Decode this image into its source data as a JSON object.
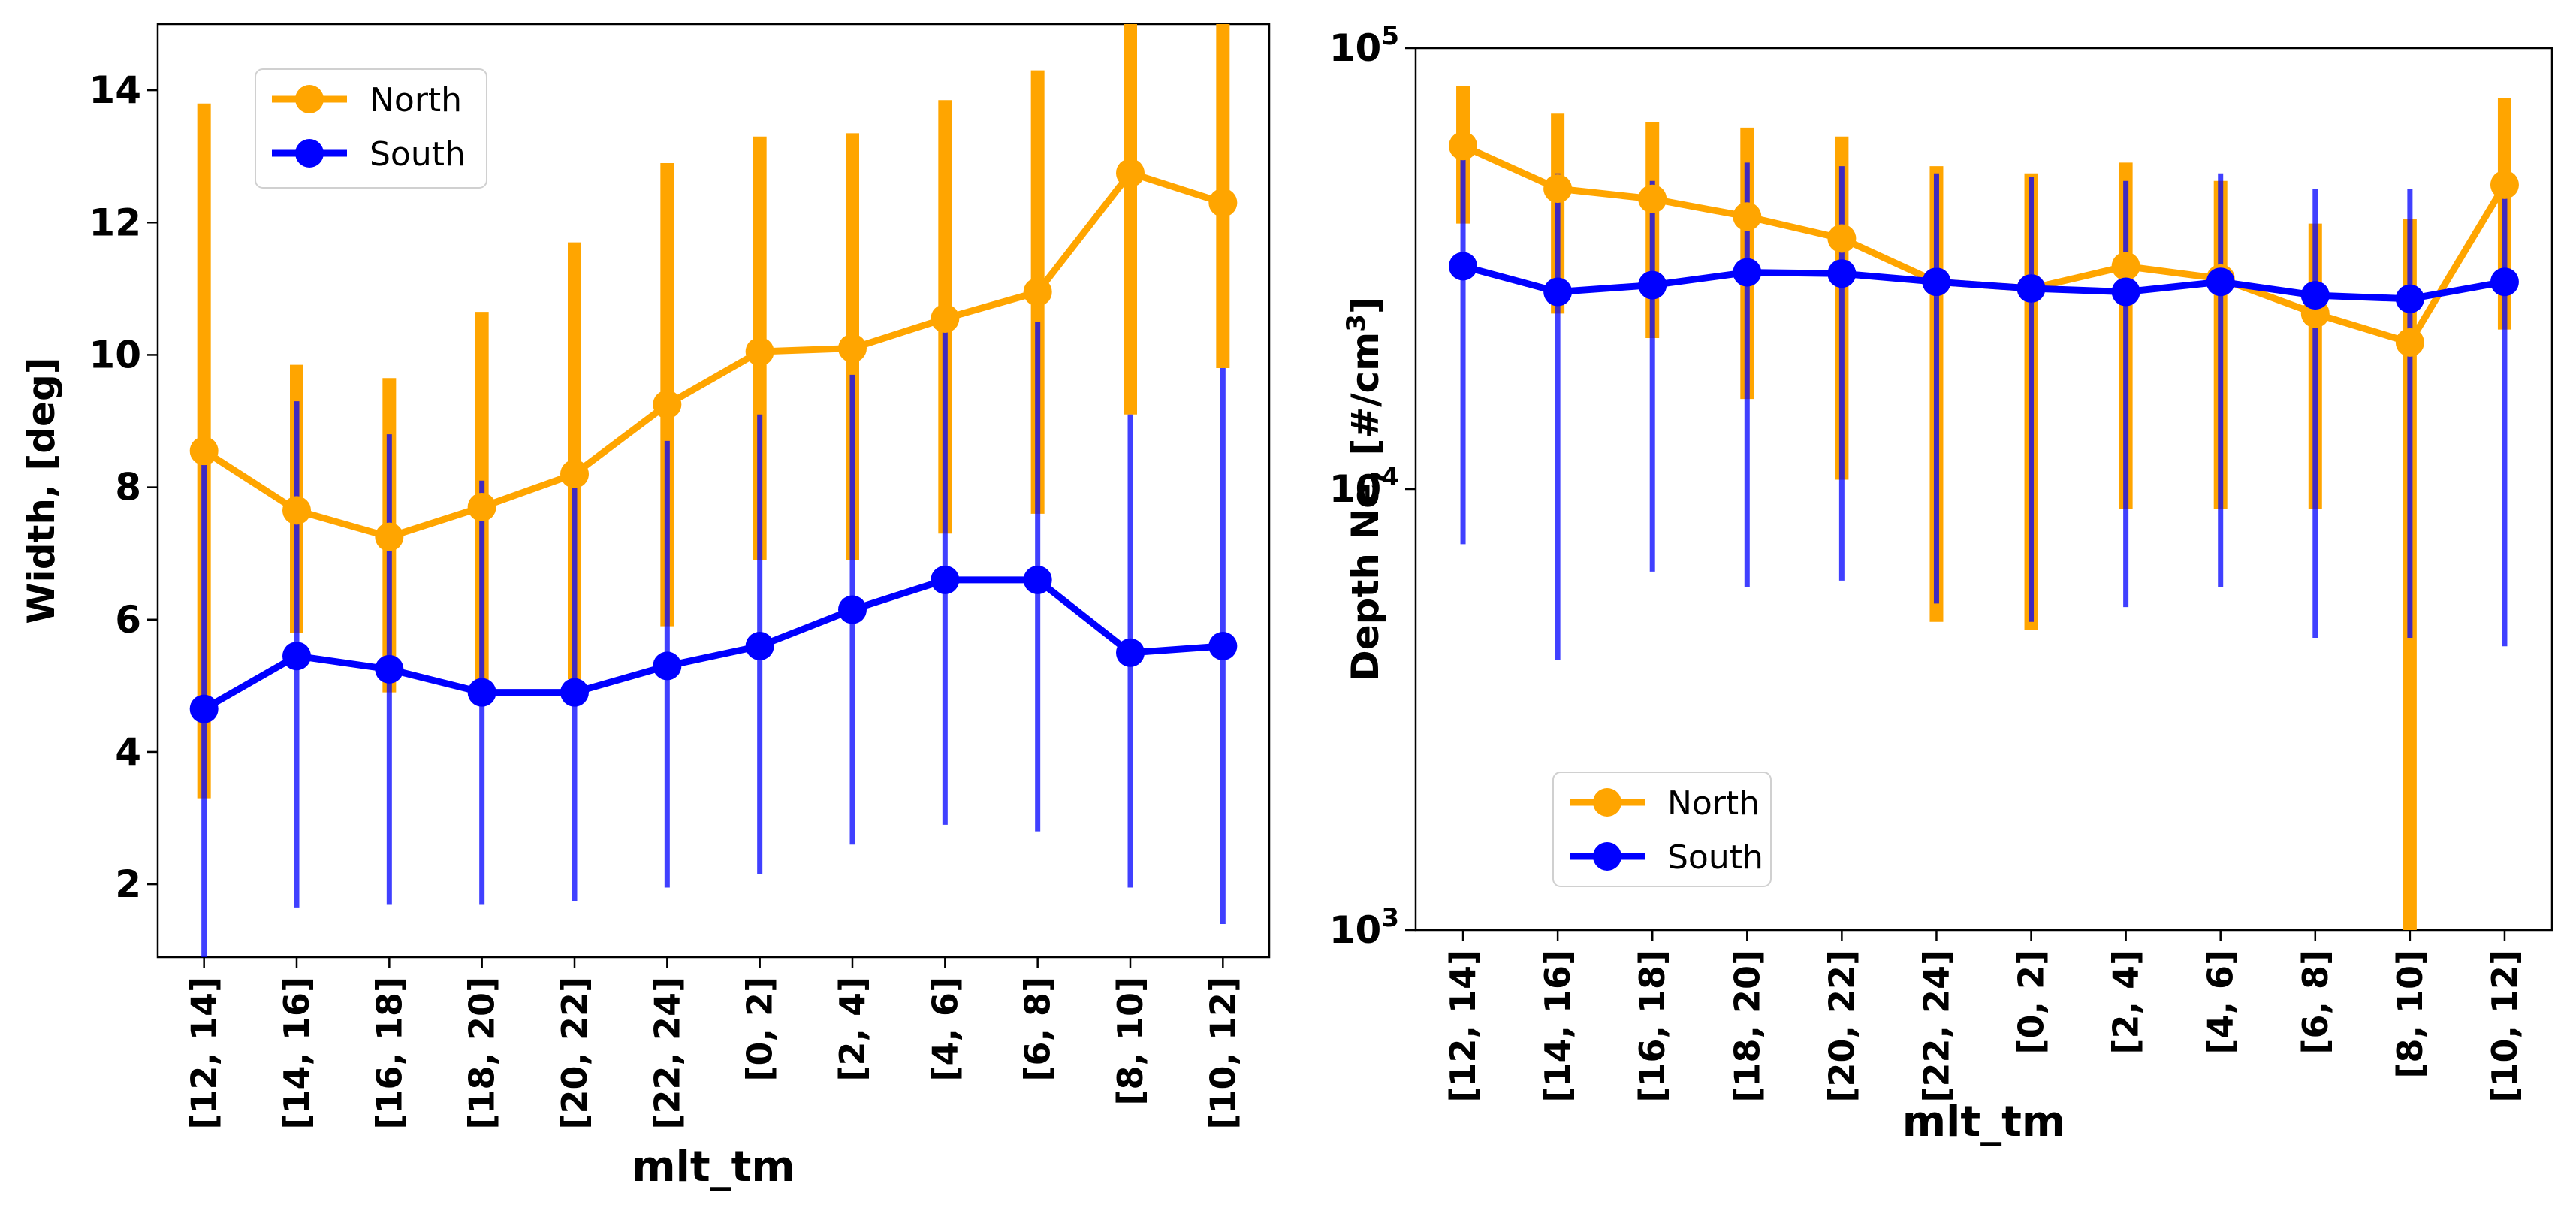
{
  "chart_data": [
    {
      "type": "line",
      "xlabel": "mlt_tm",
      "ylabel": "Width, [deg]",
      "yscale": "linear",
      "ylim": [
        0.9,
        15
      ],
      "yticks": [
        2,
        4,
        6,
        8,
        10,
        12,
        14
      ],
      "legend_location": "top-left",
      "categories": [
        "[12, 14]",
        "[14, 16]",
        "[16, 18]",
        "[18, 20]",
        "[20, 22]",
        "[22, 24]",
        "[0, 2]",
        "[2, 4]",
        "[4, 6]",
        "[6, 8]",
        "[8, 10]",
        "[10, 12]"
      ],
      "series": [
        {
          "name": "North",
          "color": "#FFA500",
          "values": [
            8.55,
            7.65,
            7.25,
            7.7,
            8.2,
            9.25,
            10.05,
            10.1,
            10.55,
            10.95,
            12.75,
            12.3
          ],
          "err_low": [
            3.3,
            5.8,
            4.9,
            5.0,
            5.1,
            5.9,
            6.9,
            6.9,
            7.3,
            7.6,
            9.1,
            9.8
          ],
          "err_high": [
            13.8,
            9.85,
            9.65,
            10.65,
            11.7,
            12.9,
            13.3,
            13.35,
            13.85,
            14.3,
            15.0,
            15.0
          ]
        },
        {
          "name": "South",
          "color": "#0000FF",
          "values": [
            4.65,
            5.45,
            5.25,
            4.9,
            4.9,
            5.3,
            5.6,
            6.15,
            6.6,
            6.6,
            5.5,
            5.6
          ],
          "err_low": [
            0.9,
            1.65,
            1.7,
            1.7,
            1.75,
            1.95,
            2.15,
            2.6,
            2.9,
            2.8,
            1.95,
            1.4
          ],
          "err_high": [
            8.4,
            9.3,
            8.8,
            8.1,
            8.1,
            8.7,
            9.1,
            9.7,
            10.4,
            10.5,
            9.1,
            9.8
          ]
        }
      ]
    },
    {
      "type": "line",
      "xlabel": "mlt_tm",
      "ylabel": "Depth Ne, [#/cm³]",
      "ylabel_main": "Depth Ne, [#/cm",
      "ylabel_sup": "3",
      "ylabel_end": "]",
      "yscale": "log",
      "ylim": [
        1000,
        100000
      ],
      "yticks": [
        {
          "value": 1000,
          "base": "10",
          "exp": "3"
        },
        {
          "value": 10000,
          "base": "10",
          "exp": "4"
        },
        {
          "value": 100000,
          "base": "10",
          "exp": "5"
        }
      ],
      "legend_location": "bottom-left",
      "categories": [
        "[12, 14]",
        "[14, 16]",
        "[16, 18]",
        "[18, 20]",
        "[20, 22]",
        "[22, 24]",
        "[0, 2]",
        "[2, 4]",
        "[4, 6]",
        "[6, 8]",
        "[8, 10]",
        "[10, 12]"
      ],
      "series": [
        {
          "name": "North",
          "color": "#FFA500",
          "values": [
            60000,
            48000,
            45500,
            41500,
            37000,
            29500,
            28500,
            32000,
            30000,
            25000,
            21500,
            49000
          ],
          "err_low": [
            40000,
            25000,
            22000,
            16000,
            10500,
            5000,
            4800,
            9000,
            9000,
            9000,
            1000,
            23000
          ],
          "err_high": [
            82000,
            71000,
            68000,
            66000,
            63000,
            54000,
            52000,
            55000,
            50000,
            40000,
            41000,
            77000
          ]
        },
        {
          "name": "South",
          "color": "#0000FF",
          "values": [
            32000,
            28000,
            29000,
            31000,
            30800,
            29500,
            28500,
            28000,
            29500,
            27500,
            27000,
            29500
          ],
          "err_low": [
            7500,
            4100,
            6500,
            6000,
            6200,
            5500,
            5000,
            5400,
            6000,
            4600,
            4600,
            4400
          ],
          "err_high": [
            56000,
            52000,
            50000,
            55000,
            54000,
            52000,
            51000,
            50000,
            52000,
            48000,
            48000,
            50000
          ]
        }
      ]
    }
  ]
}
